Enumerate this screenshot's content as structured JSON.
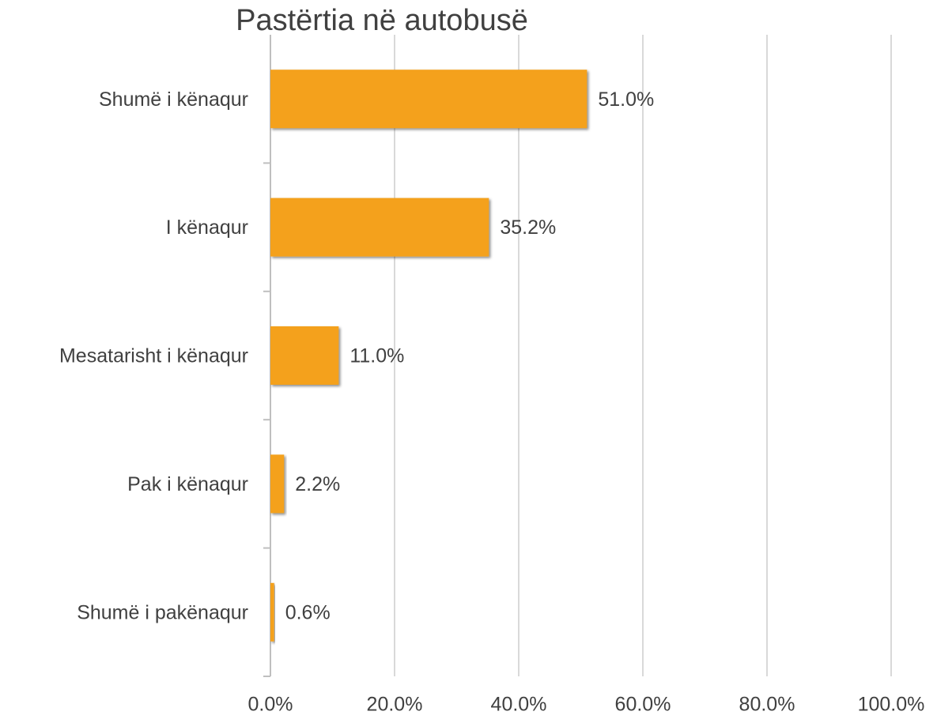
{
  "chart_data": {
    "type": "bar",
    "orientation": "horizontal",
    "title": "Pastërtia në autobusë",
    "categories": [
      "Shumë i kënaqur",
      "I kënaqur",
      "Mesatarisht i kënaqur",
      "Pak i kënaqur",
      "Shumë i pakënaqur"
    ],
    "values": [
      51.0,
      35.2,
      11.0,
      2.2,
      0.6
    ],
    "value_labels": [
      "51.0%",
      "35.2%",
      "11.0%",
      "2.2%",
      "0.6%"
    ],
    "color": "#f4a11b",
    "xlim": [
      0,
      100
    ],
    "xticks": [
      {
        "value": 0,
        "label": "0.0%"
      },
      {
        "value": 20,
        "label": "20.0%"
      },
      {
        "value": 40,
        "label": "40.0%"
      },
      {
        "value": 60,
        "label": "60.0%"
      },
      {
        "value": 80,
        "label": "80.0%"
      },
      {
        "value": 100,
        "label": "100.0%"
      }
    ],
    "grid": true
  }
}
